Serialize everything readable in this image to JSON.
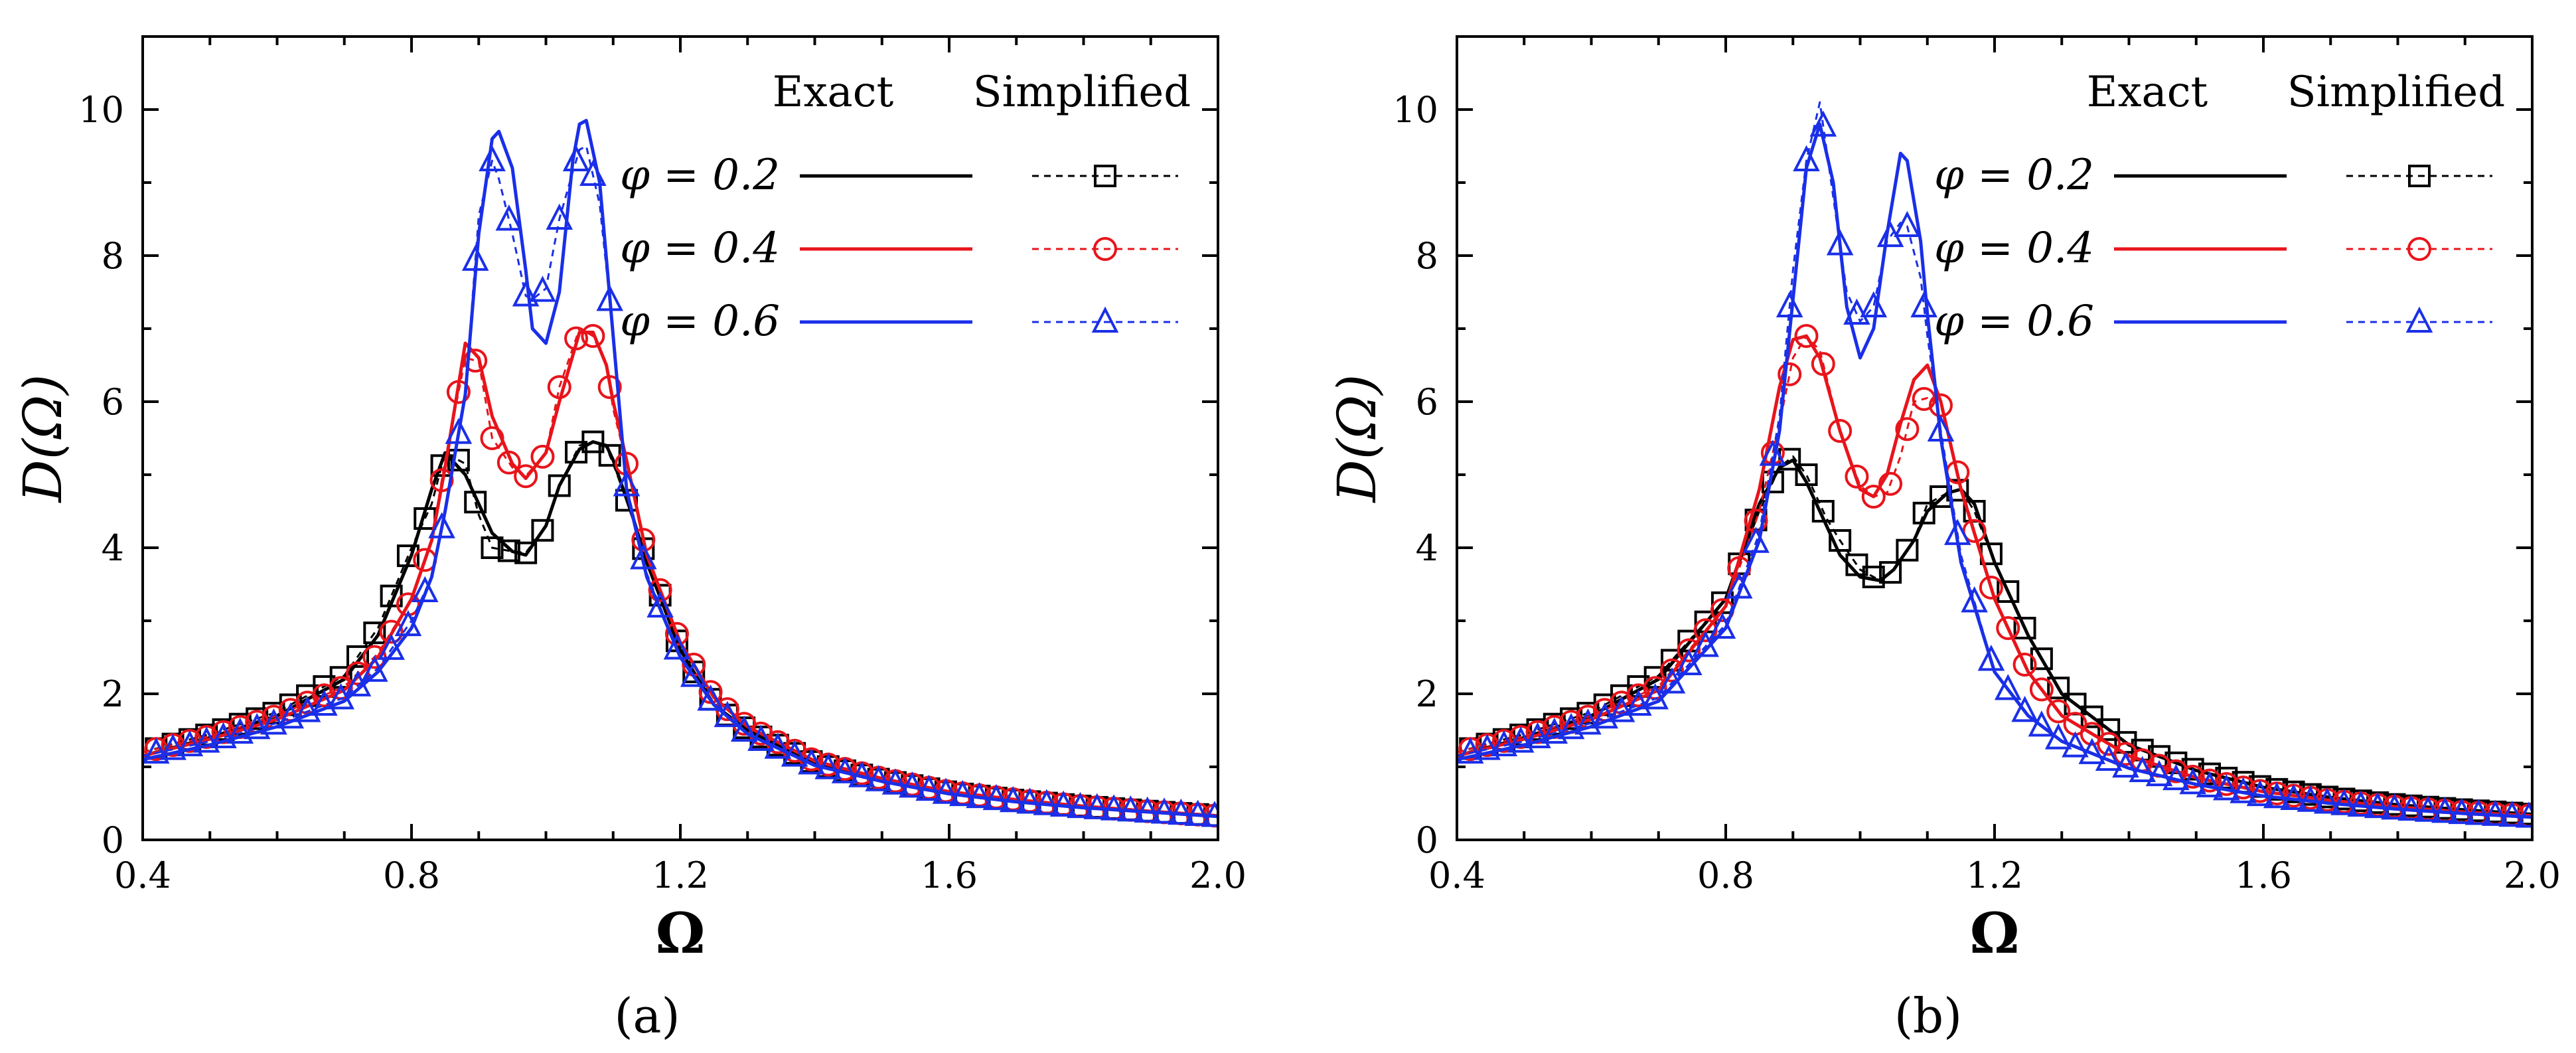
{
  "chart_data": [
    {
      "type": "line",
      "panel_label": "(a)",
      "xlabel": "Ω",
      "ylabel": "D(Ω)",
      "xlim": [
        0.4,
        2.0
      ],
      "ylim": [
        0,
        11
      ],
      "x_ticks": [
        "0.4",
        "0.8",
        "1.2",
        "1.6",
        "2.0"
      ],
      "y_ticks": [
        "0",
        "2",
        "4",
        "6",
        "8",
        "10"
      ],
      "legend": {
        "header_exact": "Exact",
        "header_simplified": "Simplified",
        "position": "top-right",
        "entries": [
          {
            "label": "φ = 0.2",
            "color": "#000000",
            "marker": "square"
          },
          {
            "label": "φ = 0.4",
            "color": "#e8141b",
            "marker": "circle"
          },
          {
            "label": "φ = 0.6",
            "color": "#1a2fe8",
            "marker": "triangle"
          }
        ]
      },
      "series": [
        {
          "name": "φ = 0.2 Exact",
          "color": "#000000",
          "style": "solid",
          "x": [
            0.4,
            0.5,
            0.6,
            0.7,
            0.75,
            0.8,
            0.83,
            0.85,
            0.88,
            0.9,
            0.92,
            0.95,
            0.97,
            1.0,
            1.02,
            1.05,
            1.07,
            1.09,
            1.1,
            1.13,
            1.15,
            1.2,
            1.25,
            1.3,
            1.4,
            1.5,
            1.6,
            1.7,
            1.8,
            1.9,
            2.0
          ],
          "y": [
            1.15,
            1.4,
            1.7,
            2.2,
            2.8,
            3.9,
            4.8,
            5.3,
            5.0,
            4.6,
            4.2,
            3.95,
            3.9,
            4.3,
            4.85,
            5.35,
            5.45,
            5.4,
            5.2,
            4.4,
            3.8,
            2.6,
            1.85,
            1.5,
            1.05,
            0.82,
            0.65,
            0.54,
            0.46,
            0.39,
            0.33
          ]
        },
        {
          "name": "φ = 0.2 Simplified",
          "color": "#000000",
          "style": "dashed",
          "marker": "square",
          "x": [
            0.4,
            0.5,
            0.6,
            0.7,
            0.75,
            0.8,
            0.83,
            0.85,
            0.88,
            0.9,
            0.92,
            0.95,
            0.97,
            1.0,
            1.02,
            1.05,
            1.07,
            1.09,
            1.1,
            1.13,
            1.15,
            1.2,
            1.25,
            1.3,
            1.4,
            1.5,
            1.6,
            1.7,
            1.8,
            1.9,
            2.0
          ],
          "y": [
            1.2,
            1.45,
            1.75,
            2.25,
            2.9,
            4.0,
            4.6,
            5.3,
            5.15,
            4.45,
            4.0,
            3.95,
            3.93,
            4.3,
            4.85,
            5.4,
            5.45,
            5.38,
            5.15,
            4.4,
            3.85,
            2.6,
            1.85,
            1.5,
            1.05,
            0.82,
            0.65,
            0.54,
            0.46,
            0.39,
            0.33
          ]
        },
        {
          "name": "φ = 0.4 Exact",
          "color": "#e8141b",
          "style": "solid",
          "x": [
            0.4,
            0.5,
            0.6,
            0.7,
            0.75,
            0.8,
            0.83,
            0.85,
            0.88,
            0.9,
            0.92,
            0.95,
            0.97,
            1.0,
            1.02,
            1.05,
            1.07,
            1.09,
            1.1,
            1.12,
            1.15,
            1.2,
            1.25,
            1.3,
            1.4,
            1.5,
            1.6,
            1.7,
            1.8,
            1.9,
            2.0
          ],
          "y": [
            1.15,
            1.38,
            1.65,
            2.05,
            2.5,
            3.3,
            4.1,
            5.1,
            6.8,
            6.6,
            5.8,
            5.15,
            4.95,
            5.3,
            6.0,
            6.95,
            6.95,
            6.5,
            6.0,
            5.2,
            3.9,
            2.7,
            1.95,
            1.55,
            1.08,
            0.84,
            0.66,
            0.55,
            0.46,
            0.39,
            0.33
          ]
        },
        {
          "name": "φ = 0.4 Simplified",
          "color": "#e8141b",
          "style": "dashed",
          "marker": "circle",
          "x": [
            0.4,
            0.5,
            0.6,
            0.7,
            0.75,
            0.8,
            0.83,
            0.85,
            0.88,
            0.9,
            0.92,
            0.95,
            0.97,
            1.0,
            1.02,
            1.05,
            1.07,
            1.09,
            1.1,
            1.12,
            1.15,
            1.2,
            1.25,
            1.3,
            1.4,
            1.5,
            1.6,
            1.7,
            1.8,
            1.9,
            2.0
          ],
          "y": [
            1.2,
            1.42,
            1.7,
            2.1,
            2.55,
            3.3,
            4.1,
            5.2,
            6.6,
            6.55,
            5.5,
            5.1,
            4.98,
            5.3,
            6.2,
            7.0,
            6.9,
            6.5,
            5.9,
            5.15,
            3.9,
            2.7,
            1.95,
            1.55,
            1.08,
            0.84,
            0.66,
            0.55,
            0.46,
            0.39,
            0.33
          ]
        },
        {
          "name": "φ = 0.6 Exact",
          "color": "#1a2fe8",
          "style": "solid",
          "x": [
            0.4,
            0.5,
            0.6,
            0.7,
            0.75,
            0.8,
            0.83,
            0.85,
            0.88,
            0.9,
            0.92,
            0.93,
            0.95,
            0.97,
            0.98,
            1.0,
            1.02,
            1.04,
            1.05,
            1.06,
            1.08,
            1.1,
            1.12,
            1.15,
            1.2,
            1.25,
            1.3,
            1.4,
            1.5,
            1.6,
            1.7,
            1.8,
            1.9,
            2.0
          ],
          "y": [
            1.1,
            1.3,
            1.55,
            1.9,
            2.3,
            2.9,
            3.6,
            4.5,
            6.1,
            8.3,
            9.6,
            9.7,
            9.2,
            7.8,
            7.0,
            6.8,
            7.5,
            9.3,
            9.8,
            9.85,
            9.0,
            6.9,
            4.8,
            3.6,
            2.5,
            1.85,
            1.45,
            1.02,
            0.8,
            0.63,
            0.52,
            0.44,
            0.38,
            0.32
          ]
        },
        {
          "name": "φ = 0.6 Simplified",
          "color": "#1a2fe8",
          "style": "dashed",
          "marker": "triangle",
          "x": [
            0.4,
            0.5,
            0.6,
            0.7,
            0.75,
            0.8,
            0.83,
            0.85,
            0.88,
            0.9,
            0.92,
            0.93,
            0.95,
            0.97,
            0.98,
            1.0,
            1.02,
            1.04,
            1.05,
            1.06,
            1.08,
            1.1,
            1.12,
            1.15,
            1.2,
            1.25,
            1.3,
            1.4,
            1.5,
            1.6,
            1.7,
            1.8,
            1.9,
            2.0
          ],
          "y": [
            1.15,
            1.35,
            1.6,
            1.95,
            2.35,
            3.0,
            3.6,
            4.5,
            6.1,
            8.55,
            9.3,
            9.05,
            8.3,
            7.45,
            7.4,
            7.55,
            8.5,
            9.15,
            9.45,
            9.5,
            8.7,
            6.95,
            4.85,
            3.65,
            2.5,
            1.85,
            1.45,
            1.02,
            0.8,
            0.63,
            0.52,
            0.44,
            0.38,
            0.32
          ]
        }
      ]
    },
    {
      "type": "line",
      "panel_label": "(b)",
      "xlabel": "Ω",
      "ylabel": "D(Ω)",
      "xlim": [
        0.4,
        2.0
      ],
      "ylim": [
        0,
        11
      ],
      "x_ticks": [
        "0.4",
        "0.8",
        "1.2",
        "1.6",
        "2.0"
      ],
      "y_ticks": [
        "0",
        "2",
        "4",
        "6",
        "8",
        "10"
      ],
      "legend": {
        "header_exact": "Exact",
        "header_simplified": "Simplified",
        "position": "top-right",
        "entries": [
          {
            "label": "φ = 0.2",
            "color": "#000000",
            "marker": "square"
          },
          {
            "label": "φ = 0.4",
            "color": "#e8141b",
            "marker": "circle"
          },
          {
            "label": "φ = 0.6",
            "color": "#1a2fe8",
            "marker": "triangle"
          }
        ]
      },
      "series": [
        {
          "name": "φ = 0.2 Exact",
          "color": "#000000",
          "style": "solid",
          "x": [
            0.4,
            0.5,
            0.6,
            0.7,
            0.8,
            0.85,
            0.88,
            0.9,
            0.92,
            0.95,
            0.97,
            1.0,
            1.03,
            1.05,
            1.08,
            1.1,
            1.13,
            1.15,
            1.17,
            1.2,
            1.25,
            1.3,
            1.4,
            1.5,
            1.6,
            1.7,
            1.8,
            1.9,
            2.0
          ],
          "y": [
            1.15,
            1.4,
            1.7,
            2.2,
            3.3,
            4.6,
            5.1,
            5.2,
            4.9,
            4.3,
            3.9,
            3.6,
            3.55,
            3.7,
            4.1,
            4.5,
            4.75,
            4.8,
            4.6,
            3.8,
            2.8,
            2.0,
            1.3,
            0.95,
            0.72,
            0.58,
            0.48,
            0.41,
            0.35
          ]
        },
        {
          "name": "φ = 0.2 Simplified",
          "color": "#000000",
          "style": "dashed",
          "marker": "square",
          "x": [
            0.4,
            0.5,
            0.6,
            0.7,
            0.8,
            0.85,
            0.88,
            0.9,
            0.92,
            0.95,
            0.97,
            1.0,
            1.03,
            1.05,
            1.08,
            1.1,
            1.13,
            1.15,
            1.17,
            1.2,
            1.25,
            1.3,
            1.4,
            1.5,
            1.6,
            1.7,
            1.8,
            1.9,
            2.0
          ],
          "y": [
            1.2,
            1.45,
            1.75,
            2.25,
            3.3,
            4.5,
            5.1,
            5.25,
            5.0,
            4.4,
            4.1,
            3.7,
            3.55,
            3.7,
            4.1,
            4.6,
            4.75,
            4.8,
            4.5,
            3.8,
            2.8,
            2.0,
            1.3,
            0.95,
            0.72,
            0.58,
            0.48,
            0.41,
            0.35
          ]
        },
        {
          "name": "φ = 0.4 Exact",
          "color": "#e8141b",
          "style": "solid",
          "x": [
            0.4,
            0.5,
            0.6,
            0.7,
            0.8,
            0.85,
            0.88,
            0.9,
            0.92,
            0.94,
            0.97,
            1.0,
            1.02,
            1.04,
            1.06,
            1.08,
            1.1,
            1.12,
            1.15,
            1.2,
            1.25,
            1.3,
            1.4,
            1.5,
            1.6,
            1.7,
            1.8,
            1.9,
            2.0
          ],
          "y": [
            1.15,
            1.38,
            1.65,
            2.05,
            3.2,
            4.8,
            6.2,
            6.85,
            6.9,
            6.6,
            5.6,
            4.8,
            4.7,
            5.0,
            5.7,
            6.3,
            6.5,
            6.0,
            4.8,
            3.3,
            2.3,
            1.7,
            1.15,
            0.85,
            0.66,
            0.54,
            0.45,
            0.38,
            0.33
          ]
        },
        {
          "name": "φ = 0.4 Simplified",
          "color": "#e8141b",
          "style": "dashed",
          "marker": "circle",
          "x": [
            0.4,
            0.5,
            0.6,
            0.7,
            0.8,
            0.85,
            0.88,
            0.9,
            0.92,
            0.94,
            0.97,
            1.0,
            1.02,
            1.04,
            1.06,
            1.08,
            1.1,
            1.12,
            1.15,
            1.2,
            1.25,
            1.3,
            1.4,
            1.5,
            1.6,
            1.7,
            1.8,
            1.9,
            2.0
          ],
          "y": [
            1.2,
            1.42,
            1.7,
            2.1,
            3.2,
            4.5,
            5.7,
            6.6,
            6.9,
            6.7,
            5.6,
            4.85,
            4.7,
            4.75,
            5.25,
            6.0,
            6.05,
            5.95,
            4.85,
            3.3,
            2.3,
            1.7,
            1.15,
            0.85,
            0.66,
            0.54,
            0.45,
            0.38,
            0.33
          ]
        },
        {
          "name": "φ = 0.6 Exact",
          "color": "#1a2fe8",
          "style": "solid",
          "x": [
            0.4,
            0.5,
            0.6,
            0.7,
            0.8,
            0.85,
            0.88,
            0.9,
            0.92,
            0.94,
            0.96,
            0.98,
            1.0,
            1.02,
            1.04,
            1.06,
            1.07,
            1.09,
            1.1,
            1.12,
            1.15,
            1.2,
            1.25,
            1.3,
            1.4,
            1.5,
            1.6,
            1.7,
            1.8,
            1.9,
            2.0
          ],
          "y": [
            1.1,
            1.3,
            1.55,
            1.9,
            2.9,
            4.1,
            5.6,
            7.4,
            9.2,
            9.8,
            9.0,
            7.3,
            6.6,
            7.0,
            8.3,
            9.4,
            9.3,
            8.2,
            7.2,
            5.5,
            3.8,
            2.3,
            1.7,
            1.35,
            0.98,
            0.76,
            0.6,
            0.5,
            0.42,
            0.36,
            0.31
          ]
        },
        {
          "name": "φ = 0.6 Simplified",
          "color": "#1a2fe8",
          "style": "dashed",
          "marker": "triangle",
          "x": [
            0.4,
            0.5,
            0.6,
            0.7,
            0.8,
            0.85,
            0.88,
            0.9,
            0.92,
            0.94,
            0.96,
            0.98,
            1.0,
            1.02,
            1.04,
            1.06,
            1.07,
            1.09,
            1.1,
            1.12,
            1.15,
            1.2,
            1.25,
            1.3,
            1.4,
            1.5,
            1.6,
            1.7,
            1.8,
            1.9,
            2.0
          ],
          "y": [
            1.15,
            1.35,
            1.6,
            1.95,
            2.95,
            4.2,
            5.8,
            7.8,
            9.3,
            10.1,
            8.8,
            7.5,
            7.1,
            7.3,
            8.2,
            8.45,
            8.4,
            7.7,
            6.9,
            5.6,
            3.9,
            2.3,
            1.7,
            1.35,
            0.98,
            0.76,
            0.6,
            0.5,
            0.42,
            0.36,
            0.31
          ]
        }
      ]
    }
  ]
}
